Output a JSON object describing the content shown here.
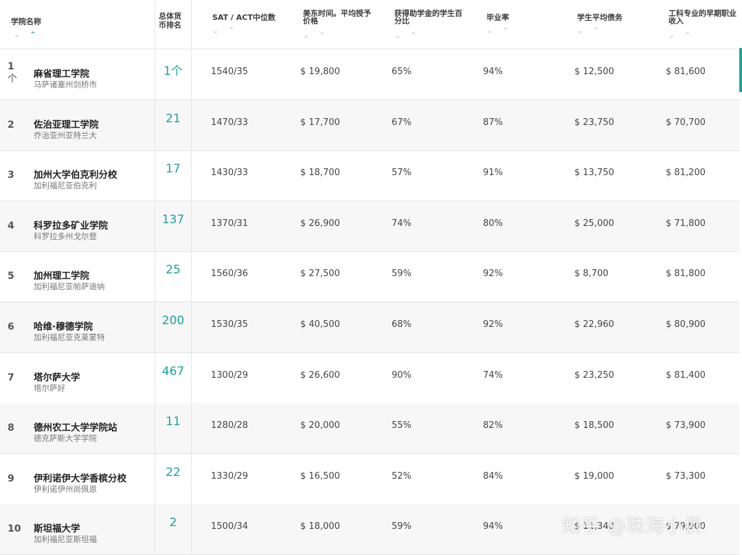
{
  "headers": [
    {
      "label": "学院名称"
    },
    {
      "label": "总体货币排名"
    },
    {
      "label": "SAT / ACT中位数"
    },
    {
      "label": "美东时间。平均授予价格"
    },
    {
      "label": "获得助学金的学生百分比"
    },
    {
      "label": "毕业率"
    },
    {
      "label": "学生平均债务"
    },
    {
      "label": "工科专业的早期职业收入"
    }
  ],
  "sort_icons": {
    "down": "⌄",
    "up": "⌃"
  },
  "rows": [
    {
      "rank": "1",
      "rank_mark": "个",
      "name": "麻省理工学院",
      "loc": "马萨诸塞州剑桥市",
      "money_rank": "1个",
      "sat": "1540/35",
      "price": "$ 19,800",
      "aid": "65%",
      "grad": "94%",
      "debt": "$ 12,500",
      "earn": "$ 81,600"
    },
    {
      "rank": "2",
      "name": "佐治亚理工学院",
      "loc": "乔治亚州亚特兰大",
      "money_rank": "21",
      "sat": "1470/33",
      "price": "$ 17,700",
      "aid": "67%",
      "grad": "87%",
      "debt": "$ 23,750",
      "earn": "$ 70,700"
    },
    {
      "rank": "3",
      "name": "加州大学伯克利分校",
      "loc": "加利福尼亚伯克利",
      "money_rank": "17",
      "sat": "1430/33",
      "price": "$ 18,700",
      "aid": "57%",
      "grad": "91%",
      "debt": "$ 13,750",
      "earn": "$ 81,200"
    },
    {
      "rank": "4",
      "name": "科罗拉多矿业学院",
      "loc": "科罗拉多州戈尔登",
      "money_rank": "137",
      "sat": "1370/31",
      "price": "$ 26,900",
      "aid": "74%",
      "grad": "80%",
      "debt": "$ 25,000",
      "earn": "$ 71,800"
    },
    {
      "rank": "5",
      "name": "加州理工学院",
      "loc": "加利福尼亚帕萨迪纳",
      "money_rank": "25",
      "sat": "1560/36",
      "price": "$ 27,500",
      "aid": "59%",
      "grad": "92%",
      "debt": "$ 8,700",
      "earn": "$ 81,800"
    },
    {
      "rank": "6",
      "name": "哈维·穆德学院",
      "loc": "加利福尼亚克莱蒙特",
      "money_rank": "200",
      "sat": "1530/35",
      "price": "$ 40,500",
      "aid": "68%",
      "grad": "92%",
      "debt": "$ 22,960",
      "earn": "$ 80,900"
    },
    {
      "rank": "7",
      "name": "塔尔萨大学",
      "loc": "塔尔萨好",
      "money_rank": "467",
      "sat": "1300/29",
      "price": "$ 26,600",
      "aid": "90%",
      "grad": "74%",
      "debt": "$ 23,250",
      "earn": "$ 81,400"
    },
    {
      "rank": "8",
      "name": "德州农工大学学院站",
      "loc": "德克萨斯大学学院",
      "money_rank": "11",
      "sat": "1280/28",
      "price": "$ 20,000",
      "aid": "55%",
      "grad": "82%",
      "debt": "$ 18,500",
      "earn": "$ 73,900"
    },
    {
      "rank": "9",
      "name": "伊利诺伊大学香槟分校",
      "loc": "伊利诺伊州尚佩恩",
      "money_rank": "22",
      "sat": "1330/29",
      "price": "$ 16,500",
      "aid": "52%",
      "grad": "84%",
      "debt": "$ 19,000",
      "earn": "$ 73,300"
    },
    {
      "rank": "10",
      "name": "斯坦福大学",
      "loc": "加利福尼亚斯坦福",
      "money_rank": "2",
      "sat": "1500/34",
      "price": "$ 18,000",
      "aid": "59%",
      "grad": "94%",
      "debt": "$ 11,340",
      "earn": "$ 79,900"
    }
  ],
  "watermark": "知乎 @珠海小侨",
  "accent_color": "#1aa39a"
}
